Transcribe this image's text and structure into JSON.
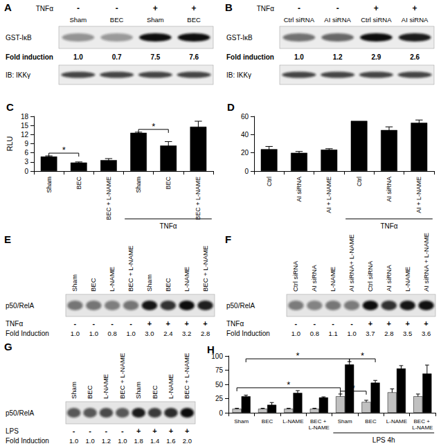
{
  "blots": [
    {
      "title": "A",
      "type": "kinase_blot",
      "treatment": "TNFα",
      "treatment_signs": [
        "-",
        "-",
        "+",
        "+"
      ],
      "lanes": [
        "Sham",
        "BEC",
        "Sham",
        "BEC"
      ],
      "rows": [
        "GST-IκB",
        "IB: IKKγ"
      ],
      "fold_label": "Fold induction",
      "fold": [
        1.0,
        0.7,
        7.5,
        7.6
      ],
      "fold_labels": [
        "1.0",
        "0.7",
        "7.5",
        "7.6"
      ]
    },
    {
      "title": "B",
      "type": "kinase_blot",
      "treatment": "TNFα",
      "treatment_signs": [
        "-",
        "-",
        "+",
        "+"
      ],
      "lanes": [
        "Ctrl siRNA",
        "AI siRNA",
        "Ctrl siRNA",
        "AI siRNA"
      ],
      "rows": [
        "GST-IκB",
        "IB: IKKγ"
      ],
      "fold_label": "Fold induction",
      "fold": [
        1.0,
        1.2,
        2.9,
        2.6
      ],
      "fold_labels": [
        "1.0",
        "1.2",
        "2.9",
        "2.6"
      ]
    },
    {
      "title": "E",
      "type": "emsa",
      "treatment": "TNFα",
      "treatment_signs": [
        "-",
        "-",
        "-",
        "-",
        "+",
        "+",
        "+",
        "+"
      ],
      "lanes": [
        "Sham",
        "BEC",
        "L-NAME",
        "BEC + L-NAME",
        "Sham",
        "BEC",
        "L-NAME",
        "BEC + L-NAME"
      ],
      "rows": [
        "p50/RelA"
      ],
      "fold_label": "Fold Induction",
      "fold": [
        1.0,
        1.0,
        0.8,
        1.0,
        3.0,
        2.4,
        3.2,
        2.8
      ],
      "fold_labels": [
        "1.0",
        "1.0",
        "0.8",
        "1.0",
        "3.0",
        "2.4",
        "3.2",
        "2.8"
      ]
    },
    {
      "title": "F",
      "type": "emsa",
      "treatment": "TNFα",
      "treatment_signs": [
        "-",
        "-",
        "-",
        "-",
        "+",
        "+",
        "+",
        "+"
      ],
      "lanes": [
        "Ctrl siRNA",
        "AI siRNA",
        "L-NAME",
        "AI siRNA+ L-NAME",
        "Ctrl siRNA",
        "AI siRNA",
        "L-NAME",
        "AI siRNA + L-NAME"
      ],
      "rows": [
        "p50/RelA"
      ],
      "fold_label": "Fold Induction",
      "fold": [
        1.0,
        0.8,
        1.1,
        1.0,
        3.7,
        2.8,
        3.5,
        3.6
      ],
      "fold_labels": [
        "1.0",
        "0.8",
        "1.1",
        "1.0",
        "3.7",
        "2.8",
        "3.5",
        "3.6"
      ]
    },
    {
      "title": "G",
      "type": "emsa",
      "treatment": "LPS",
      "treatment_signs": [
        "-",
        "-",
        "-",
        "-",
        "+",
        "+",
        "+",
        "+"
      ],
      "lanes": [
        "Sham",
        "BEC",
        "L-NAME",
        "BEC + L-NAME",
        "Sham",
        "BEC",
        "L-NAME",
        "BEC + L-NAME"
      ],
      "rows": [
        "p50/RelA"
      ],
      "fold_label": "Fold Induction",
      "fold": [
        1.0,
        1.0,
        1.2,
        1.0,
        1.8,
        1.4,
        1.6,
        2.0
      ],
      "fold_labels": [
        "1.0",
        "1.0",
        "1.2",
        "1.0",
        "1.8",
        "1.4",
        "1.6",
        "2.0"
      ]
    }
  ],
  "chart_data": [
    {
      "type": "bar",
      "title": "C",
      "y_label": "RLU",
      "categories": [
        "Sham",
        "BEC",
        "BEC + L-NAME",
        "Sham",
        "BEC",
        "BEC + L-NAME"
      ],
      "series": [
        {
          "color": "#000000",
          "values": [
            4.8,
            2.8,
            3.6,
            12.6,
            8.4,
            14.6
          ],
          "errors": [
            0.2,
            0.2,
            0.5,
            0.2,
            1.3,
            1.8
          ]
        }
      ],
      "ylim": [
        0,
        18
      ],
      "yticks": [
        0,
        3,
        6,
        9,
        12,
        15,
        18
      ],
      "grid": false,
      "groups": [
        {
          "label": "TNFα",
          "from": 3,
          "to": 5
        }
      ],
      "significance": [
        {
          "series": 0,
          "between": [
            0,
            1
          ],
          "label": "*"
        },
        {
          "series": 0,
          "between": [
            3,
            4
          ],
          "label": "*"
        }
      ]
    },
    {
      "type": "bar",
      "title": "D",
      "categories": [
        "Ctrl",
        "AI siRNA",
        "AI + L-NAME",
        "Ctrl",
        "AI siRNA",
        "AI + L-NAME"
      ],
      "series": [
        {
          "color": "#000000",
          "values": [
            24,
            20,
            23.5,
            55,
            45,
            53
          ],
          "errors": [
            3,
            1.5,
            1,
            0,
            3.5,
            3
          ]
        }
      ],
      "ylim": [
        0,
        60
      ],
      "yticks": [
        0,
        20,
        40,
        60
      ],
      "grid": false,
      "groups": [
        {
          "label": "TNFα",
          "from": 3,
          "to": 5
        }
      ]
    },
    {
      "type": "bar",
      "title": "H",
      "categories": [
        "Sham",
        "BEC",
        "L-NAME",
        "BEC + L-NAME",
        "Sham",
        "BEC",
        "L-NAME",
        "BEC + L-NAME"
      ],
      "series": [
        {
          "color": "#c0c0c0",
          "values": [
            7,
            7,
            7,
            7,
            29,
            19,
            36,
            29
          ],
          "errors": [
            1,
            1,
            1,
            1,
            4,
            3,
            6,
            4
          ]
        },
        {
          "color": "#000000",
          "values": [
            29,
            14,
            35,
            27,
            85,
            53,
            78,
            69
          ],
          "errors": [
            2,
            4,
            4,
            1,
            5,
            4,
            5,
            15
          ]
        }
      ],
      "ylim": [
        0,
        100
      ],
      "yticks": [
        0,
        25,
        50,
        75,
        100
      ],
      "grid": false,
      "groups": [
        {
          "label": "LPS 4h",
          "from": 4,
          "to": 7
        }
      ],
      "significance": [
        {
          "series": 1,
          "between": [
            0,
            4
          ],
          "label": "*"
        },
        {
          "series": 0,
          "between": [
            0,
            4
          ],
          "label": "*"
        },
        {
          "series": 0,
          "between": [
            4,
            5
          ],
          "label": "*"
        },
        {
          "series": 1,
          "between": [
            4,
            5
          ],
          "label": "*"
        }
      ]
    }
  ]
}
